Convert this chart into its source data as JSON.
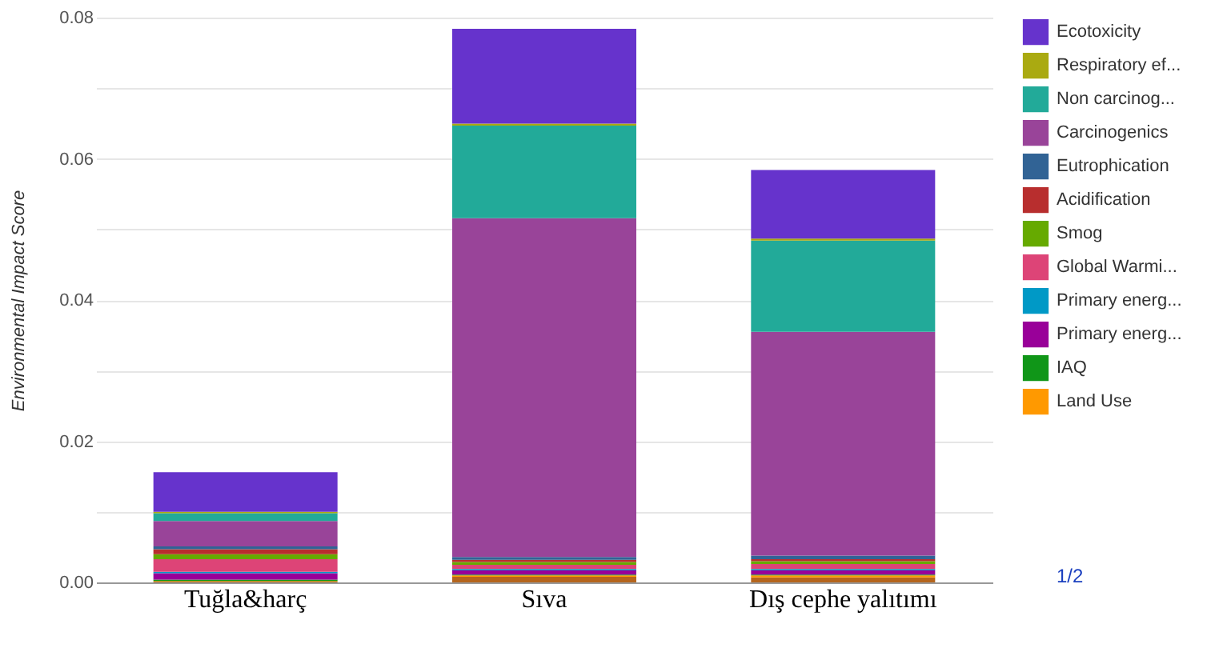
{
  "chart_data": {
    "type": "bar",
    "stacked": true,
    "ylabel": "Environmental Impact Score",
    "categories": [
      "Tuğla&harç",
      "Sıva",
      "Dış cephe yalıtımı"
    ],
    "series": [
      {
        "color": "#b5651d",
        "values": [
          0.0001,
          0.0008,
          0.0007
        ]
      },
      {
        "name": "Land Use",
        "color": "#ff9900",
        "values": [
          0.0001,
          0.0002,
          0.0003
        ]
      },
      {
        "name": "IAQ",
        "color": "#109618",
        "values": [
          0.0002,
          0.0001,
          0.0001
        ]
      },
      {
        "name": "Primary energ...",
        "color": "#990099",
        "values": [
          0.0009,
          0.0006,
          0.0006
        ]
      },
      {
        "name": "Primary energ...",
        "color": "#0099c6",
        "values": [
          0.0002,
          0.0002,
          0.0002
        ]
      },
      {
        "name": "Global Warmi...",
        "color": "#dd4477",
        "values": [
          0.0018,
          0.0006,
          0.0007
        ]
      },
      {
        "name": "Smog",
        "color": "#66aa00",
        "values": [
          0.0007,
          0.0004,
          0.0004
        ]
      },
      {
        "name": "Acidification",
        "color": "#b82e2e",
        "values": [
          0.0007,
          0.0003,
          0.0003
        ]
      },
      {
        "name": "Eutrophication",
        "color": "#316395",
        "values": [
          0.0004,
          0.0004,
          0.0005
        ]
      },
      {
        "name": "Carcinogenics",
        "color": "#994499",
        "values": [
          0.0036,
          0.048,
          0.0317
        ]
      },
      {
        "name": "Non carcinog...",
        "color": "#22aa99",
        "values": [
          0.0011,
          0.0131,
          0.0129
        ]
      },
      {
        "name": "Respiratory ef...",
        "color": "#aaaa11",
        "values": [
          0.0002,
          0.0003,
          0.0003
        ]
      },
      {
        "name": "Ecotoxicity",
        "color": "#6633cc",
        "values": [
          0.0056,
          0.0134,
          0.0097
        ]
      }
    ],
    "ylim": [
      0,
      0.08
    ],
    "yticks": [
      {
        "value": 0,
        "label": "0.00"
      },
      {
        "value": 0.01,
        "label": null
      },
      {
        "value": 0.02,
        "label": "0.02"
      },
      {
        "value": 0.03,
        "label": null
      },
      {
        "value": 0.04,
        "label": "0.04"
      },
      {
        "value": 0.05,
        "label": null
      },
      {
        "value": 0.06,
        "label": "0.06"
      },
      {
        "value": 0.07,
        "label": null
      },
      {
        "value": 0.08,
        "label": "0.08"
      }
    ],
    "grid": "y",
    "legend": "right",
    "annotations": [
      "1/2"
    ]
  }
}
